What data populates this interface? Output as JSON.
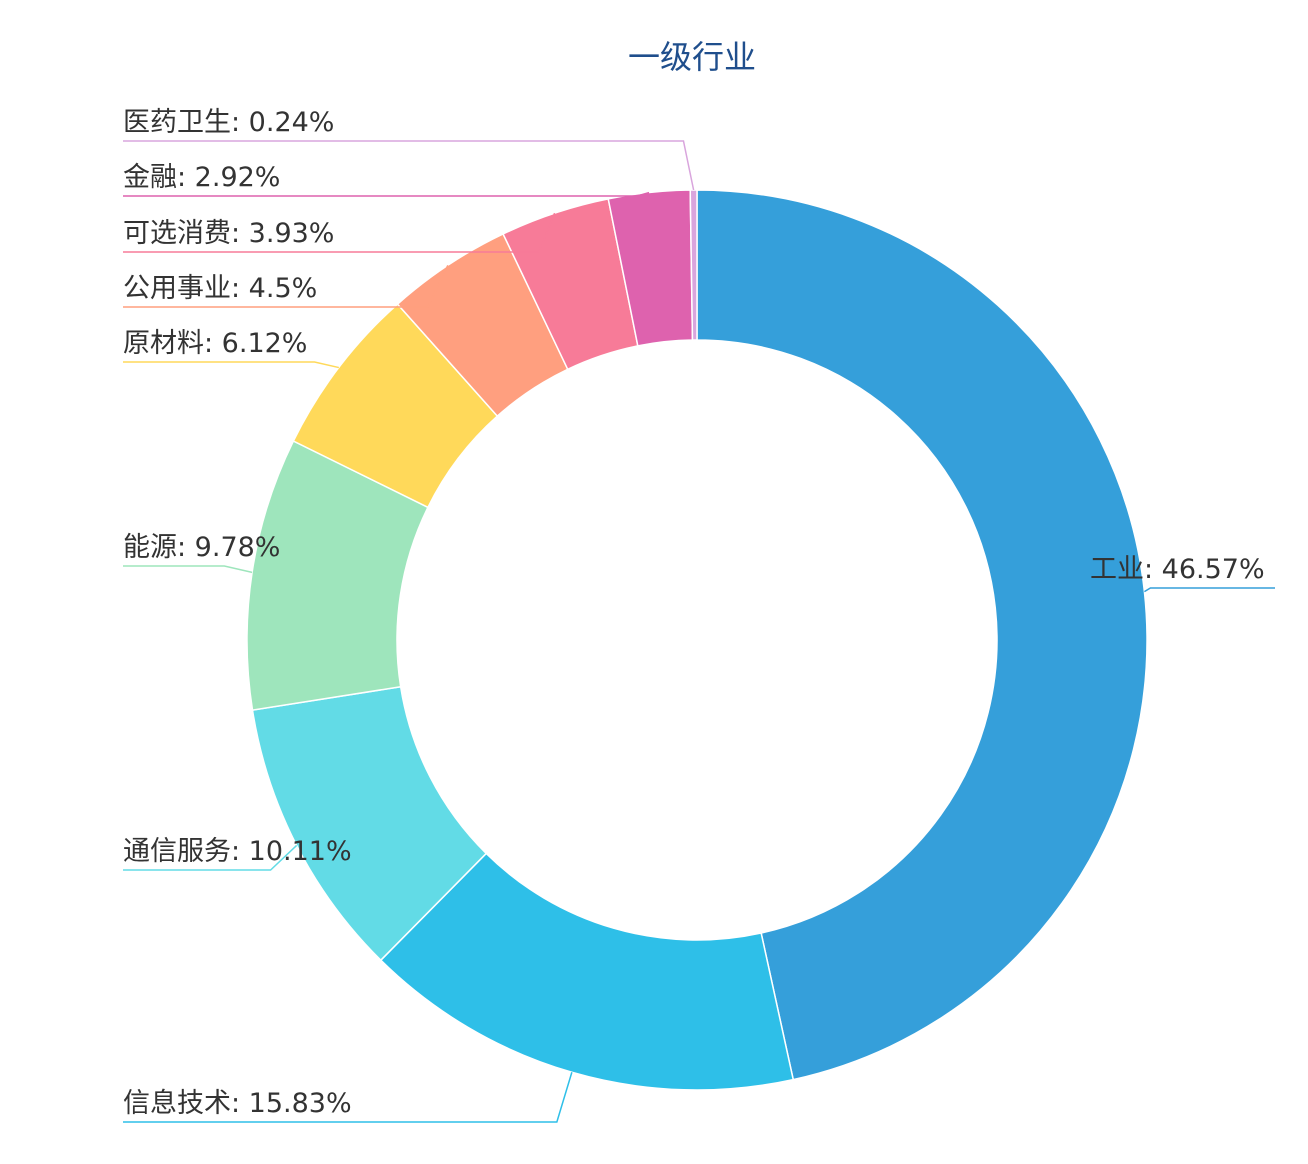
{
  "chart_data": {
    "type": "pie",
    "title": "一级行业",
    "categories": [
      "工业",
      "信息技术",
      "通信服务",
      "能源",
      "原材料",
      "公用事业",
      "可选消费",
      "金融",
      "医药卫生"
    ],
    "values": [
      46.57,
      15.83,
      10.11,
      9.78,
      6.12,
      4.5,
      3.93,
      2.92,
      0.24
    ],
    "labels": [
      "工业: 46.57%",
      "信息技术: 15.83%",
      "通信服务: 10.11%",
      "能源: 9.78%",
      "原材料: 6.12%",
      "公用事业: 4.5%",
      "可选消费: 3.93%",
      "金融: 2.92%",
      "医药卫生: 0.24%"
    ],
    "colors": [
      "#359fda",
      "#2ebfe8",
      "#62dbe6",
      "#9ee5bc",
      "#ffd95a",
      "#ff9f7f",
      "#f77b98",
      "#de62ae",
      "#d9a5dd"
    ],
    "unit": "%",
    "legend": "none"
  }
}
